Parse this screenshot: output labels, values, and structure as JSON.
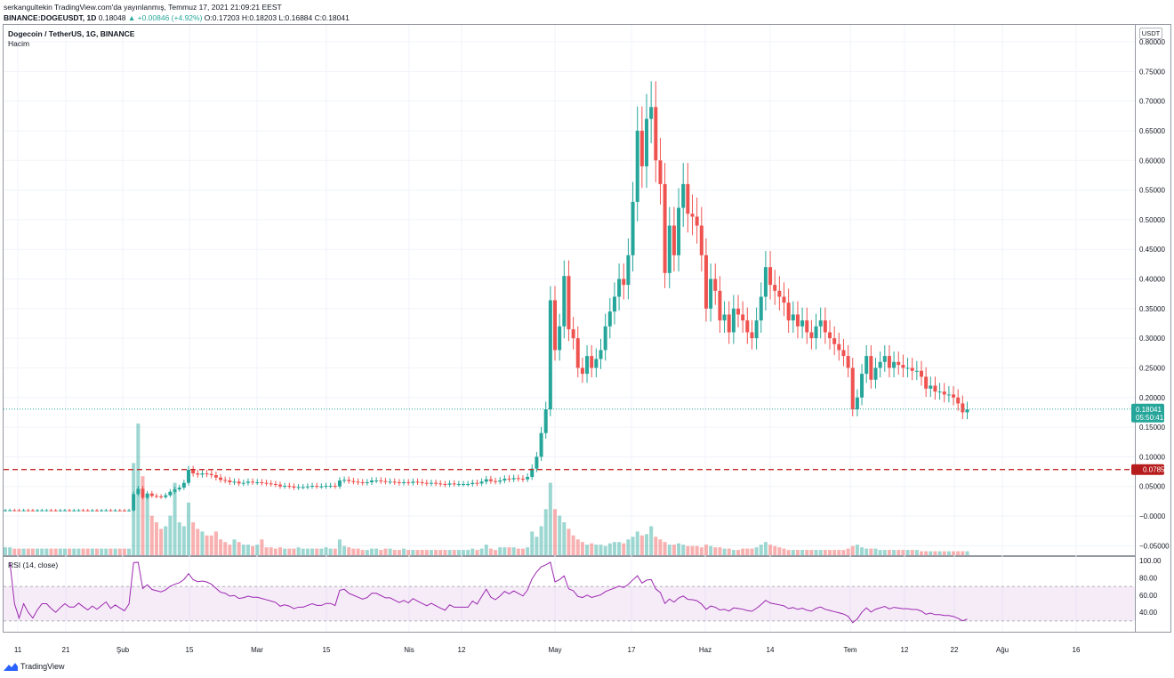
{
  "header": {
    "line1": "serkangultekin TradingView.com'da yayınlanmış, Temmuz 17, 2021 21:09:21 EEST",
    "line2_symbol": "BINANCE:DOGEUSDT, 1D",
    "line2_price": "0.18048",
    "line2_change": "▲ +0.00846 (+4.92%)",
    "line2_ohlc": "O:0.17203 H:0.18203 L:0.16884 C:0.18041"
  },
  "chart_legend": {
    "title": "Dogecoin / TetherUS, 1G, BINANCE",
    "volume_label": "Hacim",
    "rsi_label": "RSI (14, close)"
  },
  "price_axis": {
    "unit": "USDT",
    "ticks": [
      "0.80000",
      "0.75000",
      "0.70000",
      "0.65000",
      "0.60000",
      "0.55000",
      "0.50000",
      "0.45000",
      "0.40000",
      "0.35000",
      "0.30000",
      "0.25000",
      "0.20000",
      "0.15000",
      "0.10000",
      "0.05000",
      "−0.0000",
      "−0.05000"
    ],
    "tick_values": [
      0.8,
      0.75,
      0.7,
      0.65,
      0.6,
      0.55,
      0.5,
      0.45,
      0.4,
      0.35,
      0.3,
      0.25,
      0.2,
      0.15,
      0.1,
      0.05,
      0,
      -0.05
    ],
    "last_price_label": "0.18041",
    "countdown_label": "05:50:41",
    "line_label": "0.07851"
  },
  "rsi_axis": {
    "ticks": [
      "100.00",
      "80.00",
      "60.00",
      "40.00"
    ],
    "tick_values": [
      100,
      80,
      60,
      40
    ]
  },
  "time_axis": {
    "labels": [
      "11",
      "21",
      "Şub",
      "15",
      "Mar",
      "15",
      "Nis",
      "12",
      "May",
      "17",
      "Haz",
      "14",
      "Tem",
      "12",
      "22",
      "Ağu",
      "16"
    ]
  },
  "colors": {
    "up": "#26a69a",
    "down": "#ef5350",
    "rsi_line": "#9c27b0",
    "rsi_band": "#9c27b0",
    "hline": "#c62828",
    "price_tag": "#26a69a",
    "hline_tag": "#b71c1c"
  },
  "chart_data": {
    "type": "candlestick",
    "symbol": "DOGEUSDT",
    "interval": "1D",
    "horizontal_line": 0.07851,
    "last_price": 0.18041,
    "ylim": [
      -0.06,
      0.81
    ],
    "rsi_band": [
      30,
      70
    ],
    "closes": [
      0.0097,
      0.0098,
      0.0097,
      0.0096,
      0.0097,
      0.0096,
      0.0095,
      0.0096,
      0.0097,
      0.0097,
      0.0096,
      0.0095,
      0.0096,
      0.0097,
      0.0096,
      0.0096,
      0.0097,
      0.0096,
      0.0095,
      0.0096,
      0.0095,
      0.0096,
      0.0097,
      0.0095,
      0.0096,
      0.0095,
      0.0094,
      0.0096,
      0.037,
      0.046,
      0.031,
      0.038,
      0.034,
      0.033,
      0.032,
      0.035,
      0.041,
      0.045,
      0.048,
      0.056,
      0.078,
      0.072,
      0.07,
      0.072,
      0.071,
      0.069,
      0.065,
      0.061,
      0.06,
      0.057,
      0.058,
      0.055,
      0.056,
      0.058,
      0.057,
      0.057,
      0.056,
      0.055,
      0.054,
      0.053,
      0.05,
      0.051,
      0.05,
      0.048,
      0.049,
      0.049,
      0.05,
      0.051,
      0.05,
      0.05,
      0.051,
      0.051,
      0.05,
      0.06,
      0.061,
      0.059,
      0.058,
      0.057,
      0.056,
      0.057,
      0.06,
      0.06,
      0.059,
      0.058,
      0.058,
      0.057,
      0.056,
      0.057,
      0.056,
      0.058,
      0.057,
      0.056,
      0.055,
      0.056,
      0.055,
      0.054,
      0.053,
      0.055,
      0.054,
      0.054,
      0.054,
      0.054,
      0.056,
      0.055,
      0.058,
      0.062,
      0.059,
      0.058,
      0.06,
      0.063,
      0.062,
      0.064,
      0.063,
      0.062,
      0.066,
      0.08,
      0.1,
      0.14,
      0.18,
      0.364,
      0.28,
      0.32,
      0.405,
      0.315,
      0.3,
      0.25,
      0.24,
      0.27,
      0.25,
      0.265,
      0.28,
      0.32,
      0.345,
      0.37,
      0.4,
      0.39,
      0.44,
      0.53,
      0.65,
      0.59,
      0.67,
      0.69,
      0.6,
      0.56,
      0.41,
      0.49,
      0.44,
      0.52,
      0.56,
      0.51,
      0.505,
      0.49,
      0.44,
      0.35,
      0.4,
      0.38,
      0.33,
      0.34,
      0.31,
      0.35,
      0.34,
      0.33,
      0.31,
      0.3,
      0.33,
      0.37,
      0.42,
      0.39,
      0.38,
      0.37,
      0.36,
      0.33,
      0.34,
      0.32,
      0.33,
      0.31,
      0.3,
      0.32,
      0.33,
      0.31,
      0.3,
      0.29,
      0.28,
      0.27,
      0.25,
      0.18,
      0.2,
      0.24,
      0.27,
      0.23,
      0.25,
      0.26,
      0.27,
      0.25,
      0.26,
      0.255,
      0.25,
      0.25,
      0.245,
      0.245,
      0.235,
      0.215,
      0.22,
      0.21,
      0.21,
      0.205,
      0.205,
      0.2,
      0.19,
      0.175,
      0.18
    ],
    "volumes": [
      0.06,
      0.06,
      0.05,
      0.05,
      0.05,
      0.05,
      0.05,
      0.05,
      0.05,
      0.05,
      0.05,
      0.05,
      0.05,
      0.05,
      0.05,
      0.05,
      0.05,
      0.05,
      0.05,
      0.05,
      0.05,
      0.05,
      0.05,
      0.05,
      0.05,
      0.05,
      0.05,
      0.05,
      0.7,
      1.0,
      0.6,
      0.45,
      0.3,
      0.25,
      0.2,
      0.22,
      0.3,
      0.55,
      0.25,
      0.22,
      0.4,
      0.25,
      0.2,
      0.18,
      0.15,
      0.15,
      0.18,
      0.12,
      0.1,
      0.08,
      0.12,
      0.1,
      0.08,
      0.08,
      0.07,
      0.08,
      0.12,
      0.06,
      0.06,
      0.05,
      0.06,
      0.05,
      0.05,
      0.05,
      0.06,
      0.05,
      0.05,
      0.05,
      0.05,
      0.05,
      0.06,
      0.05,
      0.05,
      0.12,
      0.07,
      0.06,
      0.05,
      0.05,
      0.04,
      0.04,
      0.05,
      0.05,
      0.04,
      0.05,
      0.05,
      0.04,
      0.04,
      0.05,
      0.04,
      0.04,
      0.04,
      0.04,
      0.04,
      0.04,
      0.04,
      0.04,
      0.04,
      0.04,
      0.04,
      0.04,
      0.04,
      0.04,
      0.05,
      0.04,
      0.05,
      0.08,
      0.05,
      0.04,
      0.06,
      0.06,
      0.06,
      0.06,
      0.05,
      0.05,
      0.06,
      0.18,
      0.14,
      0.22,
      0.35,
      0.55,
      0.35,
      0.3,
      0.25,
      0.2,
      0.15,
      0.12,
      0.1,
      0.08,
      0.09,
      0.08,
      0.08,
      0.07,
      0.09,
      0.1,
      0.1,
      0.09,
      0.12,
      0.14,
      0.18,
      0.15,
      0.16,
      0.22,
      0.14,
      0.12,
      0.1,
      0.08,
      0.08,
      0.09,
      0.08,
      0.07,
      0.07,
      0.07,
      0.06,
      0.08,
      0.07,
      0.06,
      0.06,
      0.05,
      0.05,
      0.04,
      0.04,
      0.05,
      0.05,
      0.05,
      0.06,
      0.08,
      0.1,
      0.08,
      0.07,
      0.06,
      0.05,
      0.04,
      0.04,
      0.04,
      0.04,
      0.04,
      0.04,
      0.04,
      0.04,
      0.04,
      0.04,
      0.04,
      0.04,
      0.04,
      0.05,
      0.07,
      0.08,
      0.06,
      0.05,
      0.05,
      0.05,
      0.04,
      0.04,
      0.04,
      0.04,
      0.04,
      0.04,
      0.04,
      0.04,
      0.04,
      0.03,
      0.03,
      0.03,
      0.03,
      0.03,
      0.03,
      0.03,
      0.03,
      0.03,
      0.03,
      0.03
    ]
  }
}
